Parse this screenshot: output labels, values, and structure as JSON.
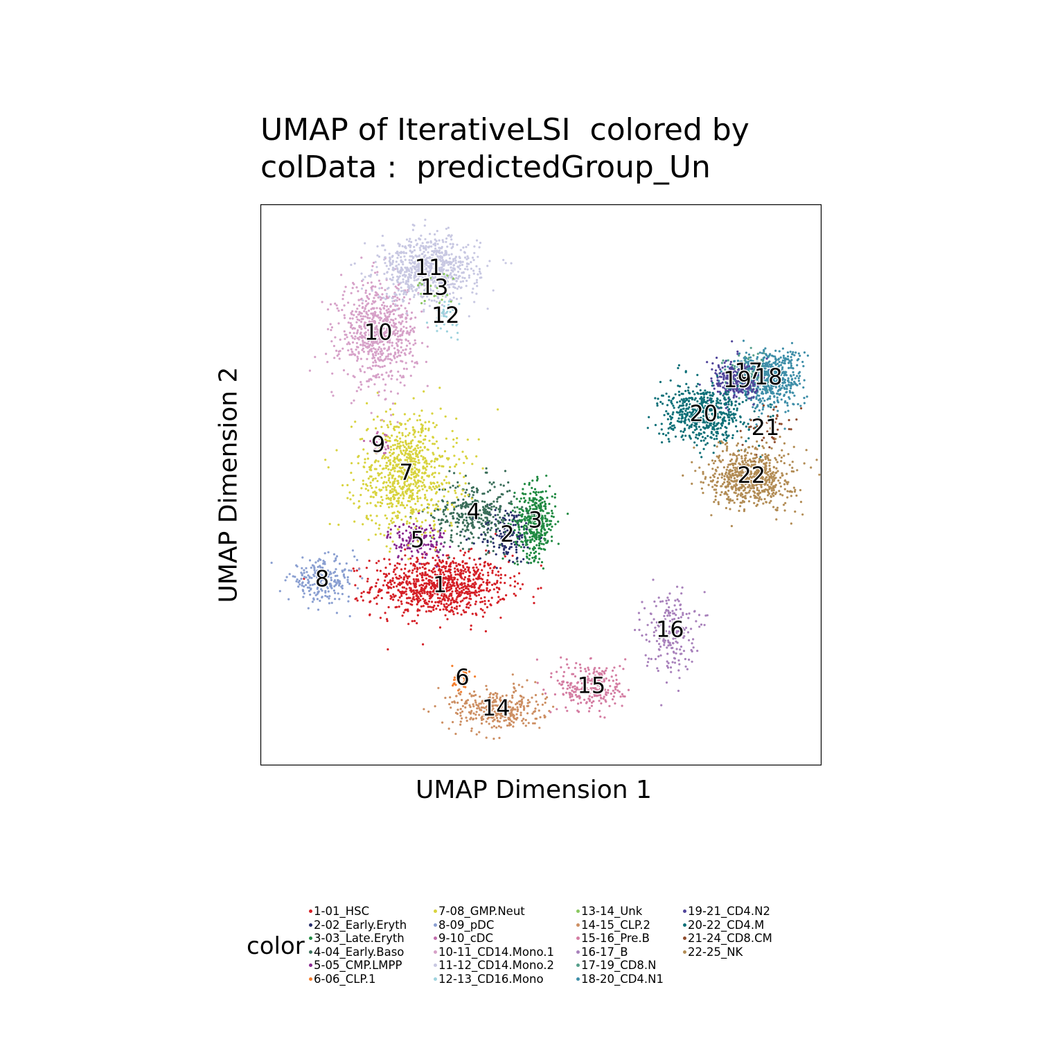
{
  "chart_data": {
    "type": "scatter",
    "title_lines": [
      "UMAP of IterativeLSI  colored by",
      "colData :  predictedGroup_Un"
    ],
    "xlabel": "UMAP Dimension 1",
    "ylabel": "UMAP Dimension 2",
    "grid": false,
    "legend_title": "color",
    "legend_position": "bottom",
    "xlim": [
      0,
      100
    ],
    "ylim": [
      0,
      100
    ],
    "clusters": [
      {
        "label": "1",
        "name": "1-01_HSC",
        "color": "#D51F26",
        "center": [
          32,
          32
        ],
        "spread": [
          8,
          3.6
        ],
        "n": 900
      },
      {
        "label": "2",
        "name": "2-02_Early.Eryth",
        "color": "#272E6A",
        "center": [
          44,
          41
        ],
        "spread": [
          3.5,
          3.5
        ],
        "n": 150
      },
      {
        "label": "3",
        "name": "3-03_Late.Eryth",
        "color": "#208A42",
        "center": [
          49,
          43.5
        ],
        "spread": [
          2.4,
          4.2
        ],
        "n": 360
      },
      {
        "label": "4",
        "name": "4-04_Early.Baso",
        "color": "#3B6E5A",
        "center": [
          38,
          45
        ],
        "spread": [
          5,
          4
        ],
        "n": 330
      },
      {
        "label": "5",
        "name": "5-05_CMP.LMPP",
        "color": "#89288F",
        "center": [
          28,
          40
        ],
        "spread": [
          3.5,
          2.3
        ],
        "n": 140
      },
      {
        "label": "6",
        "name": "6-06_CLP.1",
        "color": "#F47D2B",
        "center": [
          36,
          15.5
        ],
        "spread": [
          1.2,
          1.6
        ],
        "n": 35
      },
      {
        "label": "7",
        "name": "7-08_GMP.Neut",
        "color": "#D8D33E",
        "center": [
          26,
          52
        ],
        "spread": [
          6,
          7
        ],
        "n": 800
      },
      {
        "label": "8",
        "name": "8-09_pDC",
        "color": "#8A9FD1",
        "center": [
          11,
          33
        ],
        "spread": [
          4,
          2.5
        ],
        "n": 220
      },
      {
        "label": "9",
        "name": "9-10_cDC",
        "color": "#C06CAB",
        "center": [
          21,
          57
        ],
        "spread": [
          1.5,
          1.5
        ],
        "n": 25
      },
      {
        "label": "10",
        "name": "10-11_CD14.Mono.1",
        "color": "#D6A1C8",
        "center": [
          21,
          77
        ],
        "spread": [
          4.5,
          6
        ],
        "n": 700
      },
      {
        "label": "11",
        "name": "11-12_CD14.Mono.2",
        "color": "#C8C8E2",
        "center": [
          30,
          88.5
        ],
        "spread": [
          6,
          3.8
        ],
        "n": 750
      },
      {
        "label": "12",
        "name": "12-13_CD16.Mono",
        "color": "#9FD3DE",
        "center": [
          33,
          80
        ],
        "spread": [
          1.5,
          2
        ],
        "n": 40
      },
      {
        "label": "13",
        "name": "13-14_Unk",
        "color": "#89C75F",
        "center": [
          31,
          85
        ],
        "spread": [
          2.5,
          3
        ],
        "n": 25
      },
      {
        "label": "14",
        "name": "14-15_CLP.2",
        "color": "#CD8F63",
        "center": [
          42,
          10
        ],
        "spread": [
          5.5,
          2.5
        ],
        "n": 330
      },
      {
        "label": "15",
        "name": "15-16_Pre.B",
        "color": "#D47DA2",
        "center": [
          59,
          14
        ],
        "spread": [
          4,
          3
        ],
        "n": 260
      },
      {
        "label": "16",
        "name": "16-17_B",
        "color": "#A881BB",
        "center": [
          73,
          24
        ],
        "spread": [
          3,
          5
        ],
        "n": 200
      },
      {
        "label": "17",
        "name": "17-19_CD8.N",
        "color": "#559F8B",
        "center": [
          87,
          70
        ],
        "spread": [
          3,
          2
        ],
        "n": 120
      },
      {
        "label": "18",
        "name": "18-20_CD4.N1",
        "color": "#3E8EA8",
        "center": [
          90.5,
          69
        ],
        "spread": [
          4,
          3.5
        ],
        "n": 550
      },
      {
        "label": "19",
        "name": "19-21_CD4.N2",
        "color": "#50449A",
        "center": [
          85,
          68.5
        ],
        "spread": [
          3,
          2.5
        ],
        "n": 250
      },
      {
        "label": "20",
        "name": "20-22_CD4.M",
        "color": "#0E7078",
        "center": [
          79,
          62.5
        ],
        "spread": [
          5,
          3.5
        ],
        "n": 550
      },
      {
        "label": "21",
        "name": "21-24_CD8.CM",
        "color": "#8E4B2C",
        "center": [
          90,
          60
        ],
        "spread": [
          3,
          2.5
        ],
        "n": 40
      },
      {
        "label": "22",
        "name": "22-25_NK",
        "color": "#B28C55",
        "center": [
          87.5,
          51.5
        ],
        "spread": [
          5,
          3.6
        ],
        "n": 650
      }
    ]
  }
}
